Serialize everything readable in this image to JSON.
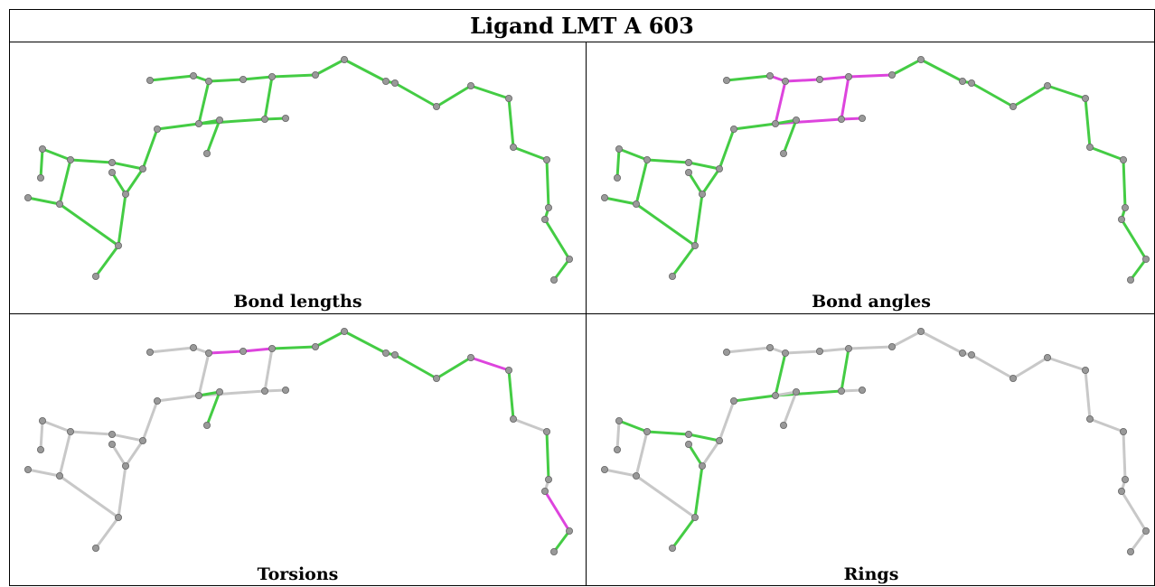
{
  "title": "Ligand LMT A 603",
  "panels": [
    {
      "caption": "Bond lengths"
    },
    {
      "caption": "Bond angles"
    },
    {
      "caption": "Torsions"
    },
    {
      "caption": "Rings"
    }
  ],
  "colors": {
    "good": "#44cc44",
    "outlier": "#dd44dd",
    "neutral": "#c8c8c8",
    "atom": "#999999",
    "border": "#000000"
  }
}
